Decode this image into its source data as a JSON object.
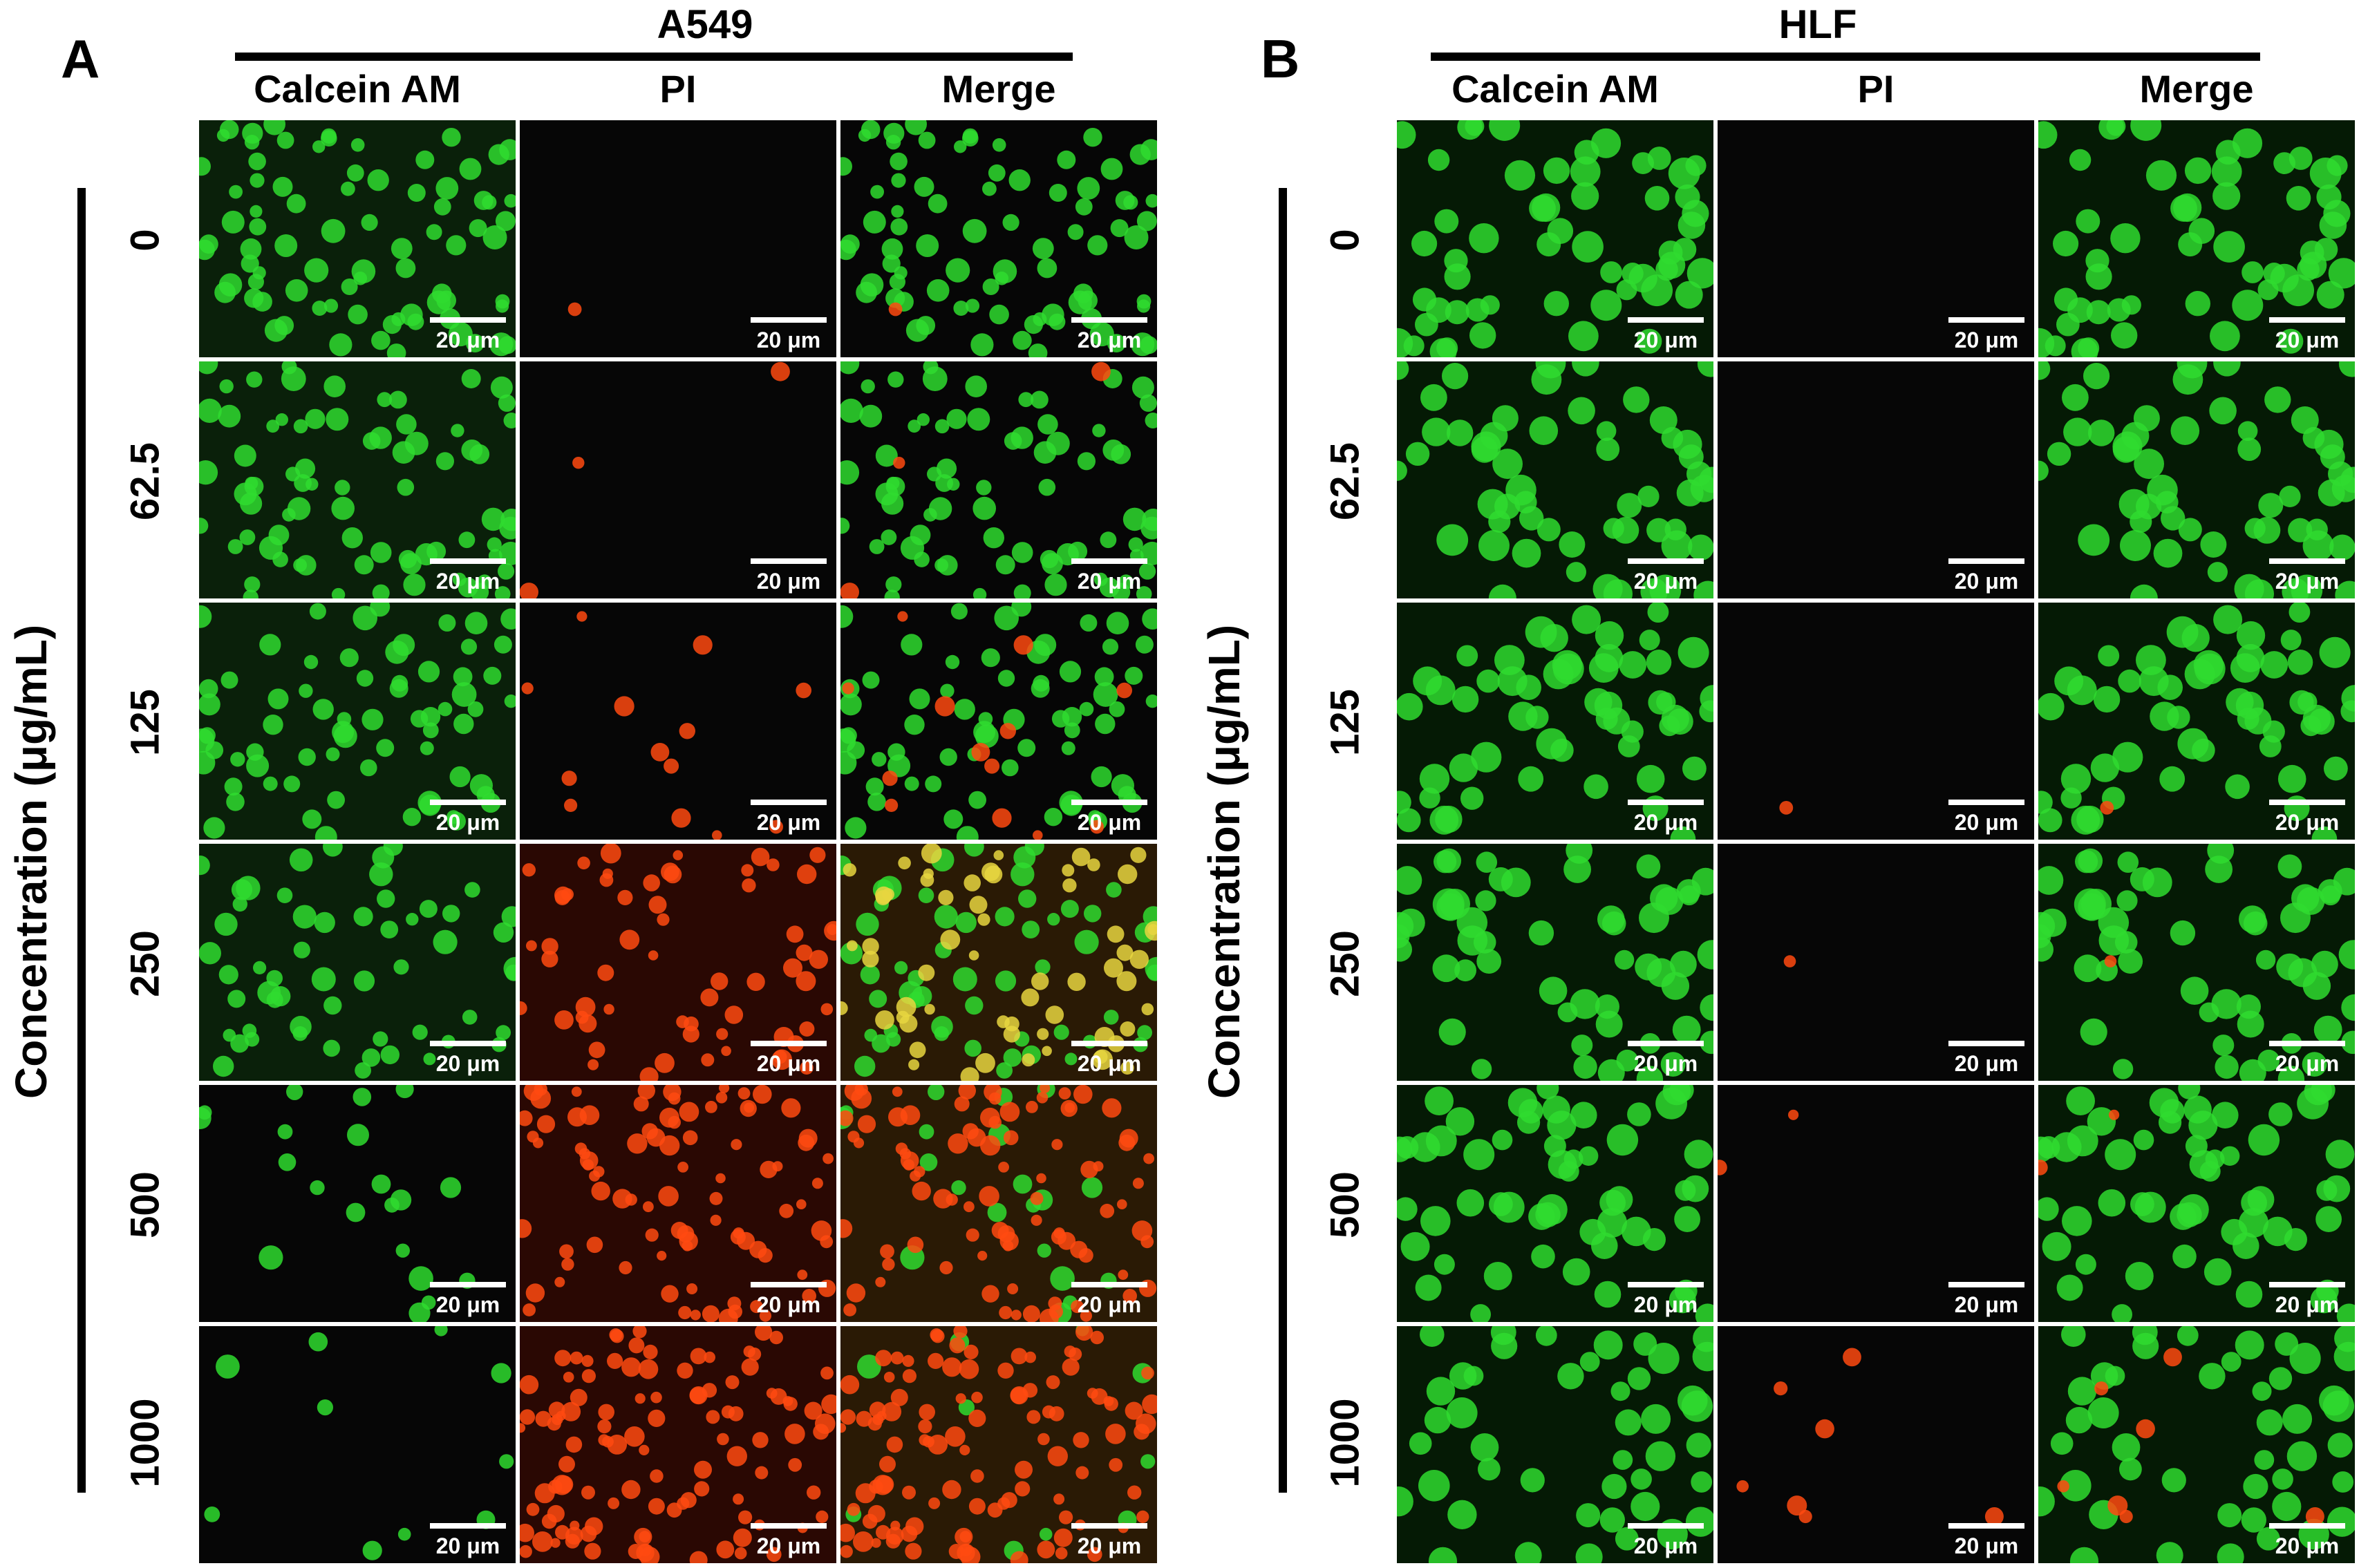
{
  "colors": {
    "calcein": "#2fdc2f",
    "pi": "#ff4a10",
    "merge_yellow": "#e8d640",
    "background": "#060606",
    "scale_bar": "#ffffff"
  },
  "columns": [
    "Calcein AM",
    "PI",
    "Merge"
  ],
  "concentrations": [
    "0",
    "62.5",
    "125",
    "250",
    "500",
    "1000"
  ],
  "scale_bar_text": "20 μm",
  "axis_label": "Concentration (μg/mL)",
  "panels": [
    {
      "letter": "A",
      "cell_line": "A549",
      "green_level": [
        1.0,
        0.95,
        0.85,
        0.7,
        0.25,
        0.12
      ],
      "red_level": [
        0.01,
        0.03,
        0.12,
        0.55,
        0.8,
        1.0
      ]
    },
    {
      "letter": "B",
      "cell_line": "HLF",
      "green_level": [
        1.0,
        1.0,
        1.0,
        1.0,
        1.0,
        0.8
      ],
      "red_level": [
        0.0,
        0.0,
        0.01,
        0.01,
        0.02,
        0.06
      ]
    }
  ]
}
